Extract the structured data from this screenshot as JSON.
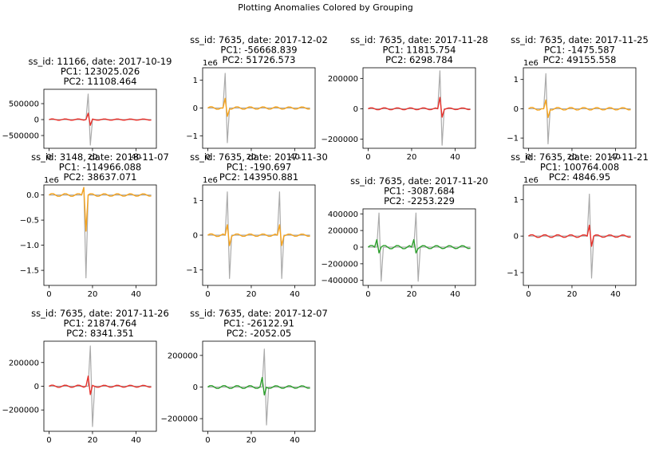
{
  "figure": {
    "title": "Plotting Anomalies Colored by Grouping"
  },
  "colors": {
    "raw": "#aaaaaa",
    "red": "#e8302a",
    "orange": "#f5a31d",
    "green": "#2ca02c"
  },
  "chart_data": [
    {
      "type": "line",
      "title": [
        "ss_id: 11166, date: 2017-10-19",
        "PC1: 123025.026",
        "PC2: 11108.464"
      ],
      "group_color": "red",
      "x_ticks": [
        "0",
        "20",
        "40"
      ],
      "y_ticks": [
        "500000",
        "0",
        "−500000"
      ],
      "y_tick_values": [
        500000,
        0,
        -500000
      ],
      "offset_text": "",
      "ylim": [
        -900000,
        950000
      ],
      "series": [
        {
          "role": "raw",
          "spikes": [
            {
              "x": 18,
              "up": 800000,
              "down": -800000
            }
          ]
        },
        {
          "role": "grouped",
          "spikes": [
            {
              "x": 18,
              "up": 200000,
              "down": -180000
            }
          ],
          "osc_amp": 22000
        }
      ]
    },
    {
      "type": "line",
      "title": [
        "ss_id: 7635, date: 2017-12-02",
        "PC1: -56668.839",
        "PC2: 51726.573"
      ],
      "group_color": "orange",
      "x_ticks": [
        "0",
        "20",
        "40"
      ],
      "y_ticks": [
        "1",
        "0",
        "−1"
      ],
      "y_tick_values": [
        1,
        0,
        -1
      ],
      "offset_text": "1e6",
      "ylim": [
        -1.45,
        1.45
      ],
      "series": [
        {
          "role": "raw",
          "spikes": [
            {
              "x": 8,
              "up": 1.25,
              "down": -1.25
            }
          ]
        },
        {
          "role": "grouped",
          "spikes": [
            {
              "x": 8,
              "up": 0.35,
              "down": -0.3
            }
          ],
          "osc_amp": 0.05
        }
      ]
    },
    {
      "type": "line",
      "title": [
        "ss_id: 7635, date: 2017-11-28",
        "PC1: 11815.754",
        "PC2: 6298.784"
      ],
      "group_color": "red",
      "x_ticks": [
        "0",
        "20",
        "40"
      ],
      "y_ticks": [
        "200000",
        "0",
        "−200000"
      ],
      "y_tick_values": [
        200000,
        0,
        -200000
      ],
      "offset_text": "",
      "ylim": [
        -260000,
        270000
      ],
      "series": [
        {
          "role": "raw",
          "spikes": [
            {
              "x": 33,
              "up": 250000,
              "down": -240000
            }
          ]
        },
        {
          "role": "grouped",
          "spikes": [
            {
              "x": 33,
              "up": 75000,
              "down": -55000
            }
          ],
          "osc_amp": 7000
        }
      ]
    },
    {
      "type": "line",
      "title": [
        "ss_id: 7635, date: 2017-11-25",
        "PC1: -1475.587",
        "PC2: 49155.558"
      ],
      "group_color": "orange",
      "x_ticks": [
        "0",
        "20",
        "40"
      ],
      "y_ticks": [
        "1",
        "0",
        "−1"
      ],
      "y_tick_values": [
        1,
        0,
        -1
      ],
      "offset_text": "1e6",
      "ylim": [
        -1.35,
        1.4
      ],
      "series": [
        {
          "role": "raw",
          "spikes": [
            {
              "x": 8,
              "up": 1.2,
              "down": -1.2
            }
          ]
        },
        {
          "role": "grouped",
          "spikes": [
            {
              "x": 8,
              "up": 0.3,
              "down": -0.3
            }
          ],
          "osc_amp": 0.05
        }
      ]
    },
    {
      "type": "line",
      "title": [
        "ss_id: 3148, date: 2018-11-07",
        "PC1: -114966.088",
        "PC2: 38637.071"
      ],
      "group_color": "orange",
      "x_ticks": [
        "0",
        "20",
        "40"
      ],
      "y_ticks": [
        "0.0",
        "−0.5",
        "−1.0",
        "−1.5"
      ],
      "y_tick_values": [
        0,
        -0.5,
        -1,
        -1.5
      ],
      "offset_text": "1e6",
      "ylim": [
        -1.8,
        0.2
      ],
      "series": [
        {
          "role": "raw",
          "spikes": [
            {
              "x": 16,
              "up": 0.15,
              "down": -1.65
            }
          ]
        },
        {
          "role": "grouped",
          "spikes": [
            {
              "x": 16,
              "up": 0.15,
              "down": -0.72
            }
          ],
          "osc_amp": 0.03
        }
      ]
    },
    {
      "type": "line",
      "title": [
        "ss_id: 7635, date: 2017-11-30",
        "PC1: -190.697",
        "PC2: 143950.881"
      ],
      "group_color": "orange",
      "x_ticks": [
        "0",
        "20",
        "40"
      ],
      "y_ticks": [
        "1",
        "0",
        "−1"
      ],
      "y_tick_values": [
        1,
        0,
        -1
      ],
      "offset_text": "1e6",
      "ylim": [
        -1.45,
        1.45
      ],
      "series": [
        {
          "role": "raw",
          "spikes": [
            {
              "x": 9,
              "up": 1.25,
              "down": -1.25
            },
            {
              "x": 33,
              "up": 1.25,
              "down": -1.25
            }
          ]
        },
        {
          "role": "grouped",
          "spikes": [
            {
              "x": 9,
              "up": 0.3,
              "down": -0.3
            },
            {
              "x": 33,
              "up": 0.3,
              "down": -0.3
            }
          ],
          "osc_amp": 0.04
        }
      ]
    },
    {
      "type": "line",
      "title": [
        "ss_id: 7635, date: 2017-11-20",
        "PC1: -3087.684",
        "PC2: -2253.229"
      ],
      "group_color": "green",
      "x_ticks": [
        "0",
        "20",
        "40"
      ],
      "y_ticks": [
        "400000",
        "200000",
        "0",
        "−200000",
        "−400000"
      ],
      "y_tick_values": [
        400000,
        200000,
        0,
        -200000,
        -400000
      ],
      "offset_text": "",
      "ylim": [
        -460000,
        460000
      ],
      "series": [
        {
          "role": "raw",
          "spikes": [
            {
              "x": 5,
              "up": 410000,
              "down": -410000
            },
            {
              "x": 22,
              "up": 410000,
              "down": -410000
            }
          ]
        },
        {
          "role": "grouped",
          "spikes": [
            {
              "x": 4,
              "up": 90000,
              "down": -70000
            },
            {
              "x": 21,
              "up": 90000,
              "down": -70000
            }
          ],
          "osc_amp": 22000
        }
      ]
    },
    {
      "type": "line",
      "title": [
        "ss_id: 7635, date: 2017-11-21",
        "PC1: 100764.008",
        "PC2: 4846.95"
      ],
      "group_color": "red",
      "x_ticks": [
        "0",
        "20",
        "40"
      ],
      "y_ticks": [
        "1",
        "0",
        "−1"
      ],
      "y_tick_values": [
        1,
        0,
        -1
      ],
      "offset_text": "1e6",
      "ylim": [
        -1.35,
        1.4
      ],
      "series": [
        {
          "role": "raw",
          "spikes": [
            {
              "x": 28,
              "up": 1.15,
              "down": -1.15
            }
          ]
        },
        {
          "role": "grouped",
          "spikes": [
            {
              "x": 28,
              "up": 0.3,
              "down": -0.28
            }
          ],
          "osc_amp": 0.04
        }
      ]
    },
    {
      "type": "line",
      "title": [
        "ss_id: 7635, date: 2017-11-26",
        "PC1: 21874.764",
        "PC2: 8341.351"
      ],
      "group_color": "red",
      "x_ticks": [
        "0",
        "20",
        "40"
      ],
      "y_ticks": [
        "200000",
        "0",
        "−200000"
      ],
      "y_tick_values": [
        200000,
        0,
        -200000
      ],
      "offset_text": "",
      "ylim": [
        -380000,
        380000
      ],
      "series": [
        {
          "role": "raw",
          "spikes": [
            {
              "x": 19,
              "up": 340000,
              "down": -340000
            }
          ]
        },
        {
          "role": "grouped",
          "spikes": [
            {
              "x": 18,
              "up": 85000,
              "down": -70000
            }
          ],
          "osc_amp": 10000
        }
      ]
    },
    {
      "type": "line",
      "title": [
        "ss_id: 7635, date: 2017-12-07",
        "PC1: -26122.91",
        "PC2: -2052.05"
      ],
      "group_color": "green",
      "x_ticks": [
        "0",
        "20",
        "40"
      ],
      "y_ticks": [
        "200000",
        "0",
        "−200000"
      ],
      "y_tick_values": [
        200000,
        0,
        -200000
      ],
      "offset_text": "",
      "ylim": [
        -280000,
        290000
      ],
      "series": [
        {
          "role": "raw",
          "spikes": [
            {
              "x": 26,
              "up": 240000,
              "down": -240000
            }
          ]
        },
        {
          "role": "grouped",
          "spikes": [
            {
              "x": 25,
              "up": 60000,
              "down": -50000
            }
          ],
          "osc_amp": 10000
        }
      ]
    }
  ]
}
